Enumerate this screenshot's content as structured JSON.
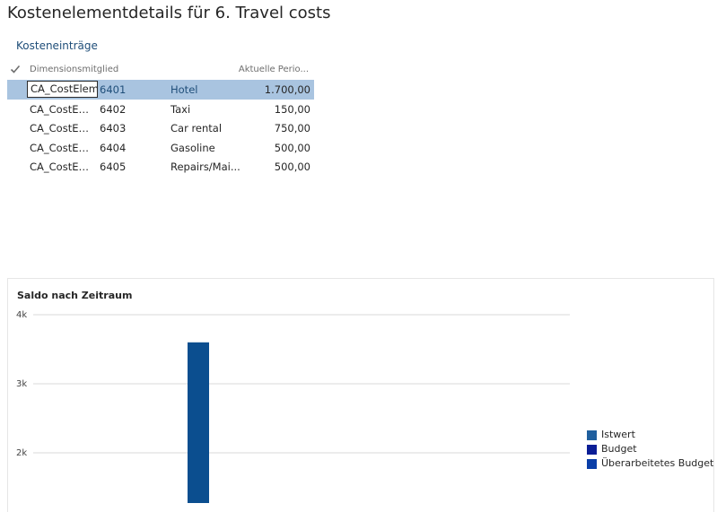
{
  "page": {
    "title": "Kostenelementdetails für 6. Travel costs"
  },
  "section": {
    "label": "Kosteneinträge"
  },
  "grid": {
    "columns": {
      "dimension": "Dimensionsmitglied",
      "period": "Aktuelle Perio..."
    },
    "rows": [
      {
        "dim": "CA_CostElem",
        "number": "6401",
        "name": "Hotel",
        "amount": "1.700,00",
        "selected": true
      },
      {
        "dim": "CA_CostEle...",
        "number": "6402",
        "name": "Taxi",
        "amount": "150,00",
        "selected": false
      },
      {
        "dim": "CA_CostEle...",
        "number": "6403",
        "name": "Car rental",
        "amount": "750,00",
        "selected": false
      },
      {
        "dim": "CA_CostEle...",
        "number": "6404",
        "name": "Gasoline",
        "amount": "500,00",
        "selected": false
      },
      {
        "dim": "CA_CostEle...",
        "number": "6405",
        "name": "Repairs/Mai...",
        "amount": "500,00",
        "selected": false
      }
    ]
  },
  "chart_data": {
    "type": "bar",
    "title": "Saldo nach Zeitraum",
    "xlabel": "",
    "ylabel": "",
    "ylim": [
      0,
      4000
    ],
    "y_ticks": [
      {
        "value": 4000,
        "label": "4k"
      },
      {
        "value": 3000,
        "label": "3k"
      },
      {
        "value": 2000,
        "label": "2k"
      }
    ],
    "grid": true,
    "legend_position": "right",
    "categories": [
      ""
    ],
    "series": [
      {
        "name": "Istwert",
        "values": [
          3600
        ],
        "color": "#1f5f9e"
      },
      {
        "name": "Budget",
        "values": [
          0
        ],
        "color": "#0b1e96"
      },
      {
        "name": "Überarbeitetes Budget",
        "values": [
          0
        ],
        "color": "#0a3ea8"
      }
    ]
  },
  "colors": {
    "accent": "#1f4e79",
    "selection": "#a9c4e0",
    "bar": "#0b4e8f"
  }
}
